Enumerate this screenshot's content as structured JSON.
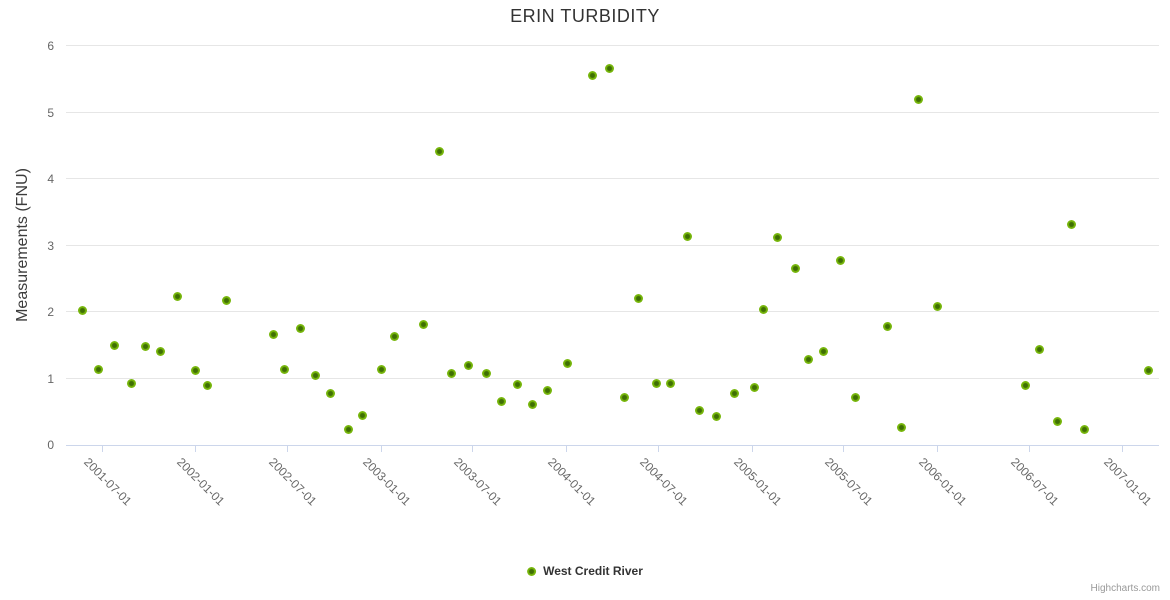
{
  "chart": {
    "title": "ERIN TURBIDITY",
    "credits": "Highcharts.com"
  },
  "colors": {
    "background": "#ffffff",
    "gridline": "#e6e6e6",
    "axis_line": "#ccd6eb",
    "tick_text": "#666666",
    "title_text": "#333333",
    "series_green": "#74b309",
    "marker_center": "#3f6f04",
    "credits_text": "#999999"
  },
  "chart_data": {
    "type": "scatter",
    "title": "ERIN TURBIDITY",
    "xlabel": "",
    "ylabel": "Measurements (FNU)",
    "ylim": [
      0,
      6
    ],
    "yticks": [
      0,
      1,
      2,
      3,
      4,
      5,
      6
    ],
    "xtick_labels": [
      "2001-07-01",
      "2002-01-01",
      "2002-07-01",
      "2003-01-01",
      "2003-07-01",
      "2004-01-01",
      "2004-07-01",
      "2005-01-01",
      "2005-07-01",
      "2006-01-01",
      "2006-07-01",
      "2007-01-01"
    ],
    "x_range": [
      "2001-04-21",
      "2007-03-15"
    ],
    "grid": "horizontal-only",
    "legend_position": "bottom-center",
    "series": [
      {
        "name": "West Credit River",
        "color": "#74b309",
        "points": [
          {
            "date": "2001-05-23",
            "value": 2.02
          },
          {
            "date": "2001-06-24",
            "value": 1.13
          },
          {
            "date": "2001-07-25",
            "value": 1.5
          },
          {
            "date": "2001-08-28",
            "value": 0.92
          },
          {
            "date": "2001-09-24",
            "value": 1.48
          },
          {
            "date": "2001-10-24",
            "value": 1.41
          },
          {
            "date": "2001-11-27",
            "value": 2.24
          },
          {
            "date": "2002-01-02",
            "value": 1.12
          },
          {
            "date": "2002-01-24",
            "value": 0.89
          },
          {
            "date": "2002-03-03",
            "value": 2.17
          },
          {
            "date": "2002-06-04",
            "value": 1.66
          },
          {
            "date": "2002-06-26",
            "value": 1.13
          },
          {
            "date": "2002-07-27",
            "value": 1.75
          },
          {
            "date": "2002-08-26",
            "value": 1.04
          },
          {
            "date": "2002-09-24",
            "value": 0.77
          },
          {
            "date": "2002-10-29",
            "value": 0.23
          },
          {
            "date": "2002-11-26",
            "value": 0.44
          },
          {
            "date": "2003-01-02",
            "value": 1.14
          },
          {
            "date": "2003-01-28",
            "value": 1.63
          },
          {
            "date": "2003-03-26",
            "value": 1.81
          },
          {
            "date": "2003-04-27",
            "value": 4.41
          },
          {
            "date": "2003-05-20",
            "value": 1.07
          },
          {
            "date": "2003-06-24",
            "value": 1.19
          },
          {
            "date": "2003-07-28",
            "value": 1.08
          },
          {
            "date": "2003-08-27",
            "value": 0.65
          },
          {
            "date": "2003-09-27",
            "value": 0.91
          },
          {
            "date": "2003-10-27",
            "value": 0.61
          },
          {
            "date": "2003-11-26",
            "value": 0.82
          },
          {
            "date": "2004-01-05",
            "value": 1.23
          },
          {
            "date": "2004-02-23",
            "value": 5.55
          },
          {
            "date": "2004-03-27",
            "value": 5.66
          },
          {
            "date": "2004-04-26",
            "value": 0.72
          },
          {
            "date": "2004-05-23",
            "value": 2.21
          },
          {
            "date": "2004-06-28",
            "value": 0.92
          },
          {
            "date": "2004-07-25",
            "value": 0.92
          },
          {
            "date": "2004-08-27",
            "value": 3.14
          },
          {
            "date": "2004-09-20",
            "value": 0.52
          },
          {
            "date": "2004-10-23",
            "value": 0.43
          },
          {
            "date": "2004-11-28",
            "value": 0.78
          },
          {
            "date": "2005-01-07",
            "value": 0.86
          },
          {
            "date": "2005-01-25",
            "value": 2.04
          },
          {
            "date": "2005-02-21",
            "value": 3.12
          },
          {
            "date": "2005-03-28",
            "value": 2.66
          },
          {
            "date": "2005-04-24",
            "value": 1.28
          },
          {
            "date": "2005-05-22",
            "value": 1.41
          },
          {
            "date": "2005-06-25",
            "value": 2.78
          },
          {
            "date": "2005-07-25",
            "value": 0.71
          },
          {
            "date": "2005-09-26",
            "value": 1.78
          },
          {
            "date": "2005-10-23",
            "value": 0.26
          },
          {
            "date": "2005-11-26",
            "value": 5.2
          },
          {
            "date": "2006-01-02",
            "value": 2.08
          },
          {
            "date": "2006-06-25",
            "value": 0.89
          },
          {
            "date": "2006-07-22",
            "value": 1.44
          },
          {
            "date": "2006-08-27",
            "value": 0.36
          },
          {
            "date": "2006-09-24",
            "value": 3.31
          },
          {
            "date": "2006-10-20",
            "value": 0.24
          },
          {
            "date": "2007-02-23",
            "value": 1.12
          }
        ]
      }
    ]
  }
}
